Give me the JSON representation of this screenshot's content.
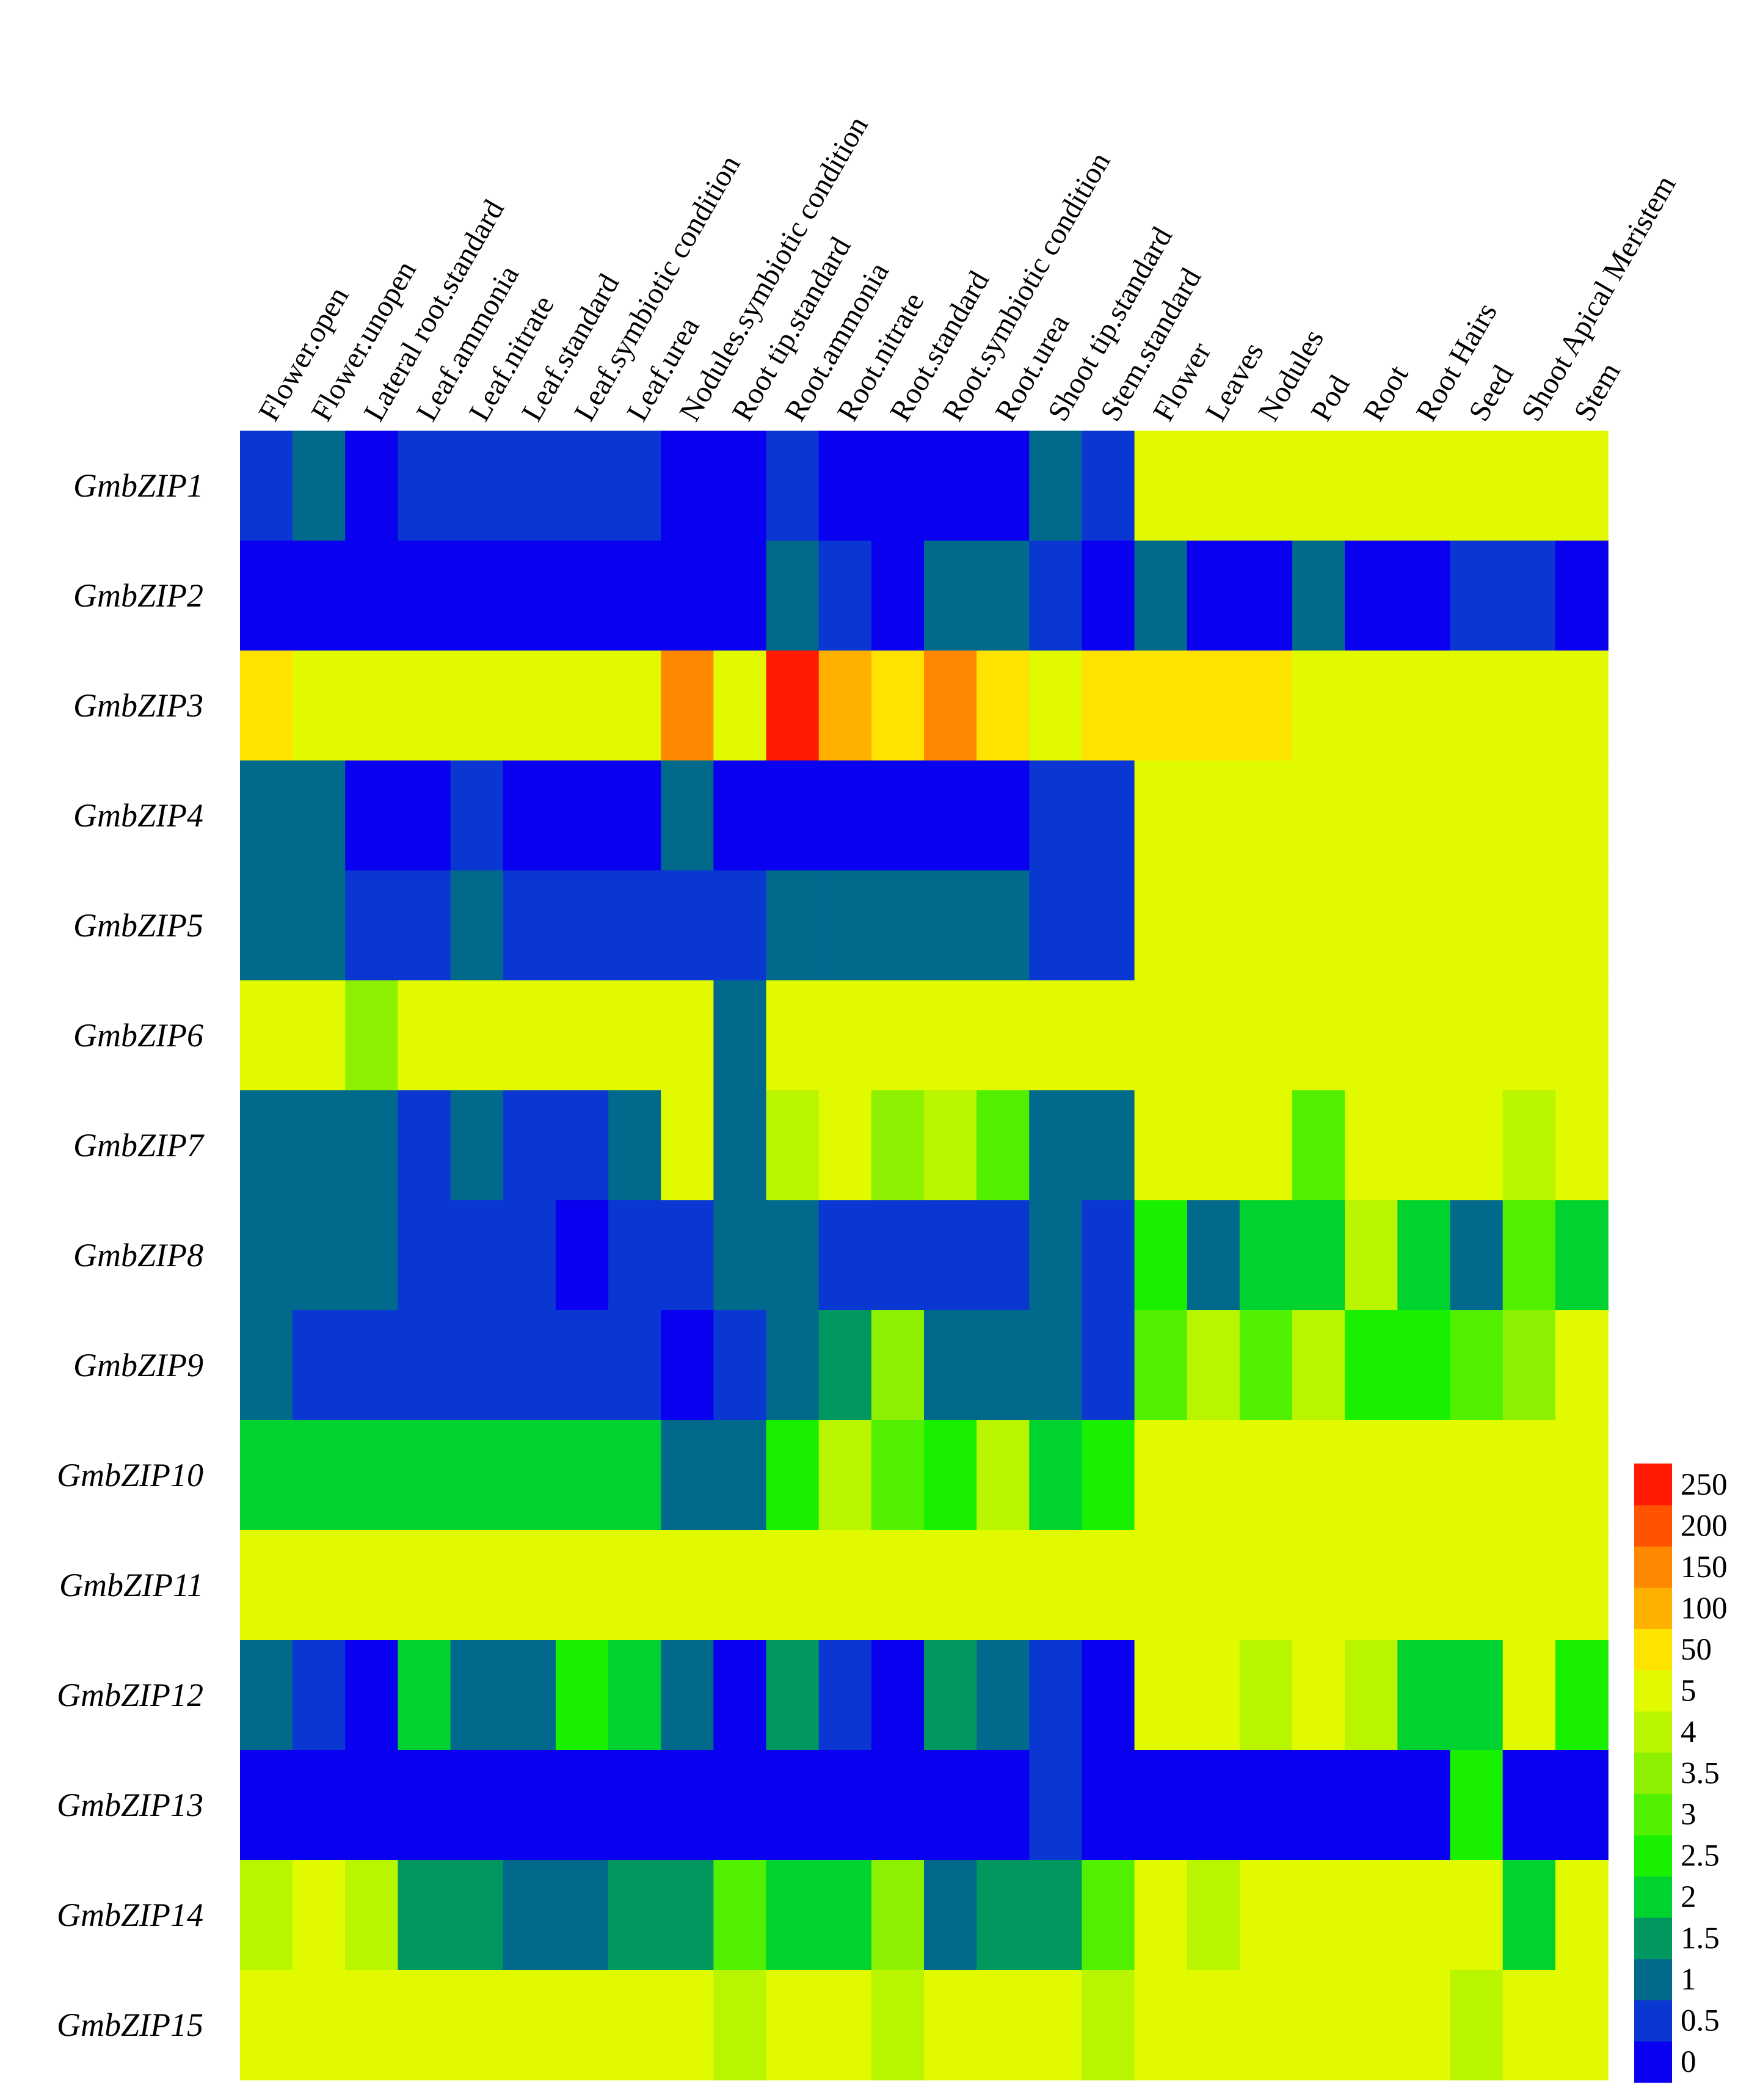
{
  "chart_data": {
    "type": "heatmap",
    "title": "",
    "xlabel": "",
    "ylabel": "",
    "columns": [
      "Flower.open",
      "Flower.unopen",
      "Lateral root.standard",
      "Leaf.ammonia",
      "Leaf.nitrate",
      "Leaf.standard",
      "Leaf.symbiotic condition",
      "Leaf.urea",
      "Nodules.symbiotic condition",
      "Root tip.standard",
      "Root.ammonia",
      "Root.nitrate",
      "Root.standard",
      "Root.symbiotic condition",
      "Root.urea",
      "Shoot tip.standard",
      "Stem.standard",
      "Flower",
      "Leaves",
      "Nodules",
      "Pod",
      "Root",
      "Root Hairs",
      "Seed",
      "Shoot Apical Meristem",
      "Stem"
    ],
    "rows": [
      "GmbZIP1",
      "GmbZIP2",
      "GmbZIP3",
      "GmbZIP4",
      "GmbZIP5",
      "GmbZIP6",
      "GmbZIP7",
      "GmbZIP8",
      "GmbZIP9",
      "GmbZIP10",
      "GmbZIP11",
      "GmbZIP12",
      "GmbZIP13",
      "GmbZIP14",
      "GmbZIP15"
    ],
    "values": [
      [
        0.5,
        1,
        0,
        0.5,
        0.5,
        0.5,
        0.5,
        0.5,
        0,
        0,
        0.5,
        0,
        0,
        0,
        0,
        1,
        0.5,
        5,
        5,
        5,
        5,
        5,
        5,
        5,
        5,
        5
      ],
      [
        0,
        0,
        0,
        0,
        0,
        0,
        0,
        0,
        0,
        0,
        1,
        0.5,
        0,
        1,
        1,
        0.5,
        0,
        1,
        0,
        0,
        1,
        0,
        0,
        0.5,
        0.5,
        0
      ],
      [
        50,
        5,
        5,
        5,
        5,
        5,
        5,
        5,
        150,
        5,
        250,
        100,
        50,
        150,
        50,
        5,
        50,
        50,
        50,
        50,
        5,
        5,
        5,
        5,
        5,
        5
      ],
      [
        1,
        1,
        0,
        0,
        0.5,
        0,
        0,
        0,
        1,
        0,
        0,
        0,
        0,
        0,
        0,
        0.5,
        0.5,
        5,
        5,
        5,
        5,
        5,
        5,
        5,
        5,
        5
      ],
      [
        1,
        1,
        0.5,
        0.5,
        1,
        0.5,
        0.5,
        0.5,
        0.5,
        0.5,
        1,
        1,
        1,
        1,
        1,
        0.5,
        0.5,
        5,
        5,
        5,
        5,
        5,
        5,
        5,
        5,
        5
      ],
      [
        5,
        5,
        3.5,
        5,
        5,
        5,
        5,
        5,
        5,
        1,
        5,
        5,
        5,
        5,
        5,
        5,
        5,
        5,
        5,
        5,
        5,
        5,
        5,
        5,
        5,
        5
      ],
      [
        1,
        1,
        1,
        0.5,
        1,
        0.5,
        0.5,
        1,
        5,
        1,
        4,
        5,
        3.5,
        4,
        3,
        1,
        1,
        5,
        5,
        5,
        3,
        5,
        5,
        5,
        4,
        5
      ],
      [
        1,
        1,
        1,
        0.5,
        0.5,
        0.5,
        0,
        0.5,
        0.5,
        1,
        1,
        0.5,
        0.5,
        0.5,
        0.5,
        1,
        0.5,
        2.5,
        1,
        2,
        2,
        4,
        2,
        1,
        3,
        2
      ],
      [
        1,
        0.5,
        0.5,
        0.5,
        0.5,
        0.5,
        0.5,
        0.5,
        0,
        0.5,
        1,
        1.5,
        3.5,
        1,
        1,
        1,
        0.5,
        3,
        4,
        3,
        4,
        2.5,
        2.5,
        3,
        3.5,
        5
      ],
      [
        2,
        2,
        2,
        2,
        2,
        2,
        2,
        2,
        1,
        1,
        2.5,
        4,
        3,
        2.5,
        4,
        2,
        2.5,
        5,
        5,
        5,
        5,
        5,
        5,
        5,
        5,
        5
      ],
      [
        5,
        5,
        5,
        5,
        5,
        5,
        5,
        5,
        5,
        5,
        5,
        5,
        5,
        5,
        5,
        5,
        5,
        5,
        5,
        5,
        5,
        5,
        5,
        5,
        5,
        5
      ],
      [
        1,
        0.5,
        0,
        2,
        1,
        1,
        2.5,
        2,
        1,
        0,
        1.5,
        0.5,
        0,
        1.5,
        1,
        0.5,
        0,
        5,
        5,
        4,
        5,
        4,
        2,
        2,
        5,
        2.5
      ],
      [
        0,
        0,
        0,
        0,
        0,
        0,
        0,
        0,
        0,
        0,
        0,
        0,
        0,
        0,
        0,
        0.5,
        0,
        0,
        0,
        0,
        0,
        0,
        0,
        2.5,
        0,
        0
      ],
      [
        4,
        5,
        4,
        1.5,
        1.5,
        1,
        1,
        1.5,
        1.5,
        3,
        2,
        2,
        3.5,
        1,
        1.5,
        1.5,
        3,
        5,
        4,
        5,
        5,
        5,
        5,
        5,
        2,
        5
      ],
      [
        5,
        5,
        5,
        5,
        5,
        5,
        5,
        5,
        5,
        4,
        5,
        5,
        4,
        5,
        5,
        5,
        4,
        5,
        5,
        5,
        5,
        5,
        5,
        4,
        5,
        5
      ]
    ],
    "legend": {
      "position": "right",
      "labels": [
        "0",
        "0.5",
        "1",
        "1.5",
        "2",
        "2.5",
        "3",
        "3.5",
        "4",
        "5",
        "50",
        "100",
        "150",
        "200",
        "250"
      ],
      "colors": [
        "#0a00f0",
        "#0a37d2",
        "#00698c",
        "#00985f",
        "#00d230",
        "#19f000",
        "#50f000",
        "#8cf000",
        "#b9f400",
        "#e1fa00",
        "#ffe300",
        "#ffb000",
        "#ff8800",
        "#ff5300",
        "#ff1a00"
      ]
    }
  }
}
